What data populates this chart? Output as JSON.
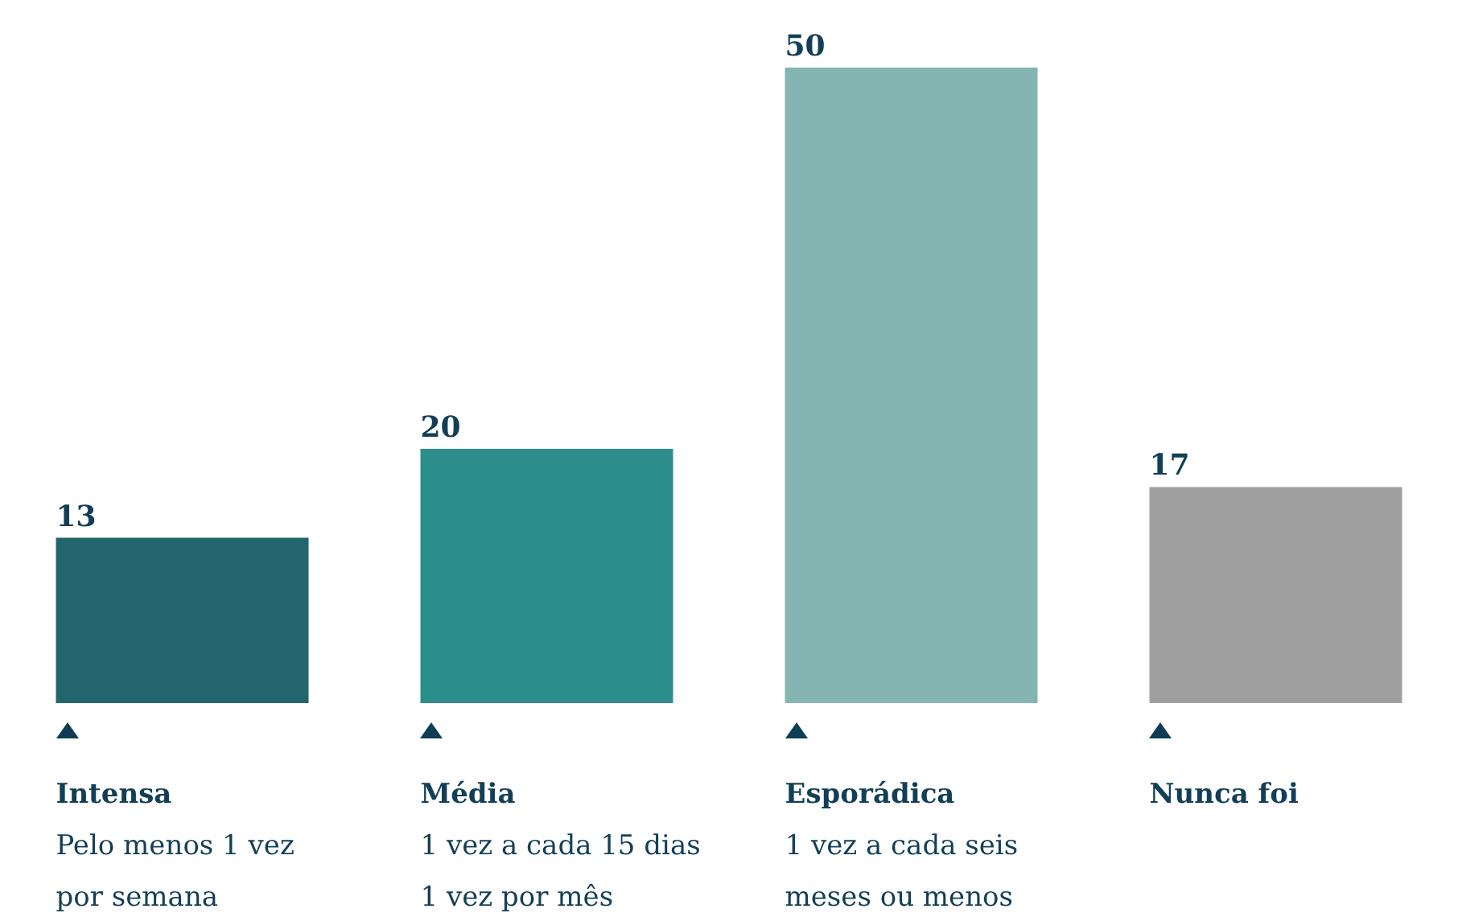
{
  "chart_data": {
    "type": "bar",
    "categories": [
      "Intensa\nPelo menos 1 vez\npor semana",
      "Média\n1 vez a cada 15 dias\n1 vez por mês",
      "Esporádica\n1 vez a cada seis\nmeses ou menos",
      "Nunca foi"
    ],
    "values": [
      13,
      20,
      50,
      17
    ],
    "colors": [
      "#22656c",
      "#2c8e8b",
      "#84b5b3",
      "#9f9f9f"
    ],
    "data_labels": true
  }
}
